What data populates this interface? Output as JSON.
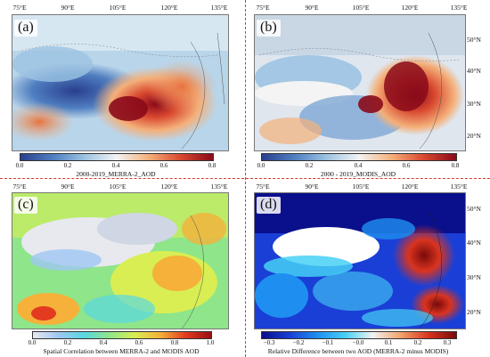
{
  "panels": {
    "a": {
      "label": "(a)",
      "variable": "MERRA-2 AOD",
      "lon_ticks": [
        "75°E",
        "90°E",
        "105°E",
        "120°E",
        "135°E"
      ],
      "lat_ticks": [],
      "colorbar_title": "2000-2019_MERRA-2_AOD",
      "colorbar_ticks": [
        "0.0",
        "0.2",
        "0.4",
        "0.6",
        "0.8"
      ],
      "colormap": [
        "#2a3f8f",
        "#4f7ec0",
        "#9cc3e2",
        "#f2f2f2",
        "#f4b07a",
        "#d9482f",
        "#8a0a1a"
      ]
    },
    "b": {
      "label": "(b)",
      "variable": "MODIS AOD",
      "lon_ticks": [
        "75°E",
        "90°E",
        "105°E",
        "120°E",
        "135°E"
      ],
      "lat_ticks": [
        "50°N",
        "40°N",
        "30°N",
        "20°N"
      ],
      "colorbar_title": "2000 - 2019_MODIS_AOD",
      "colorbar_ticks": [
        "0.0",
        "0.2",
        "0.4",
        "0.6",
        "0.8"
      ],
      "colormap": [
        "#2a3f8f",
        "#4f7ec0",
        "#9cc3e2",
        "#f2f2f2",
        "#f4b07a",
        "#d9482f",
        "#8a0a1a"
      ]
    },
    "c": {
      "label": "(c)",
      "variable": "Spatial correlation",
      "lon_ticks": [
        "75°E",
        "90°E",
        "105°E",
        "120°E",
        "135°E"
      ],
      "lat_ticks": [],
      "colorbar_title": "Spatial Correlation between MERRA-2 and MODIS AOD",
      "colorbar_ticks": [
        "0.0",
        "0.2",
        "0.4",
        "0.6",
        "0.8",
        "1.0"
      ],
      "colormap": [
        "#e8e8ef",
        "#9ec7f2",
        "#58d8e2",
        "#8fe58a",
        "#d9ee52",
        "#f5b13a",
        "#e23b1f",
        "#9a0f16"
      ]
    },
    "d": {
      "label": "(d)",
      "variable": "Relative difference",
      "lon_ticks": [
        "75°E",
        "90°E",
        "105°E",
        "120°E",
        "135°E"
      ],
      "lat_ticks": [
        "50°N",
        "40°N",
        "30°N",
        "20°N"
      ],
      "colorbar_title": "Relative Difference between two AOD (MERRA-2 minus MODIS)",
      "colorbar_ticks": [
        "−0.3",
        "−0.2",
        "−0.1",
        "−0.0",
        "0.1",
        "0.2",
        "0.3"
      ],
      "colormap": [
        "#0a0f8c",
        "#1a3fd6",
        "#1e8ff0",
        "#46d0f5",
        "#f2f2f2",
        "#f2a36a",
        "#d9341f",
        "#7a0a0a"
      ]
    }
  }
}
